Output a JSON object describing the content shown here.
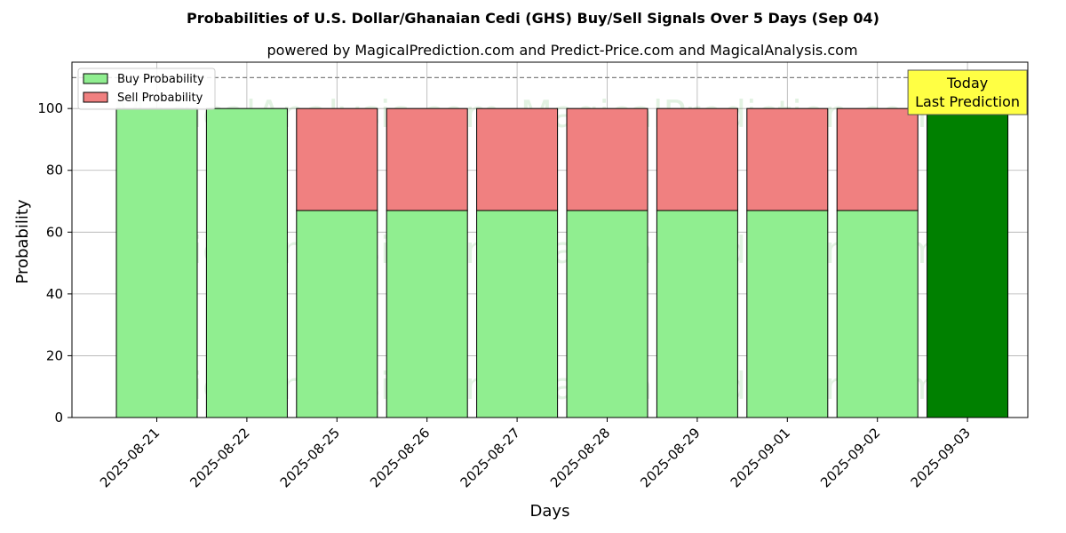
{
  "chart_data": {
    "type": "bar",
    "title": "Probabilities of U.S. Dollar/Ghanaian Cedi (GHS) Buy/Sell Signals Over 5 Days (Sep 04)",
    "subtitle": "powered by MagicalPrediction.com and Predict-Price.com and MagicalAnalysis.com",
    "xlabel": "Days",
    "ylabel": "Probability",
    "ylim": [
      0,
      115
    ],
    "yticks": [
      0,
      20,
      40,
      60,
      80,
      100
    ],
    "grid": true,
    "legend_position": "top-left",
    "reference_line": 110,
    "categories": [
      "2025-08-21",
      "2025-08-22",
      "2025-08-25",
      "2025-08-26",
      "2025-08-27",
      "2025-08-28",
      "2025-08-29",
      "2025-09-01",
      "2025-09-02",
      "2025-09-03"
    ],
    "series": [
      {
        "name": "Buy Probability",
        "color": "#90ee90",
        "values": [
          100,
          100,
          67,
          67,
          67,
          67,
          67,
          67,
          67,
          100
        ]
      },
      {
        "name": "Sell Probability",
        "color": "#f08080",
        "values": [
          0,
          0,
          33,
          33,
          33,
          33,
          33,
          33,
          33,
          0
        ]
      }
    ],
    "highlight": {
      "index": 9,
      "color": "#008000"
    },
    "annotation": {
      "lines": [
        "Today",
        "Last Prediction"
      ],
      "color": "#ffff44"
    },
    "watermarks": [
      "MagicalAnalysis.com",
      "MagicalPrediction.com"
    ]
  }
}
